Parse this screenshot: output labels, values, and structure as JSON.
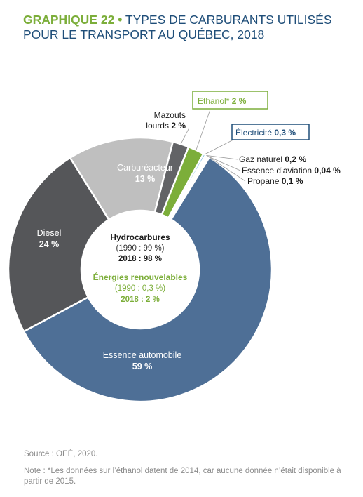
{
  "header": {
    "graph_number": "GRAPHIQUE 22",
    "bullet": "•",
    "title_line1": "TYPES DE CARBURANTS UTILISÉS",
    "title_line2": "POUR LE TRANSPORT AU QUÉBEC, 2018"
  },
  "center": {
    "hydro_title": "Hydrocarbures",
    "hydro_1990": "(1990 : 99 %)",
    "hydro_2018": "2018 : 98 %",
    "renew_title": "Énergies renouvelables",
    "renew_1990": "(1990 : 0,3 %)",
    "renew_2018": "2018 : 2 %"
  },
  "chart_data": {
    "type": "pie",
    "variant": "donut",
    "start_angle_deg_clockwise_from_top": 31,
    "series": [
      {
        "name": "Essence automobile",
        "value": 59,
        "label_value": "59 %",
        "color": "#4e6f96"
      },
      {
        "name": "Diesel",
        "value": 24,
        "label_value": "24 %",
        "color": "#555659"
      },
      {
        "name": "Carburéacteur",
        "value": 13,
        "label_value": "13 %",
        "color": "#bfbfbf"
      },
      {
        "name": "Mazouts lourds",
        "value": 2,
        "label_value": "2 %",
        "color": "#626366"
      },
      {
        "name": "Ethanol*",
        "value": 2,
        "label_value": "2 %",
        "color": "#7cae3a"
      },
      {
        "name": "Électricité",
        "value": 0.3,
        "label_value": "0,3 %",
        "color": "#8ec5e6"
      },
      {
        "name": "Gaz naturel",
        "value": 0.2,
        "label_value": "0,2 %",
        "color": "#4a4a4a"
      },
      {
        "name": "Essence d’aviation",
        "value": 0.04,
        "label_value": "0,04 %",
        "color": "#5a5a5a"
      },
      {
        "name": "Propane",
        "value": 0.1,
        "label_value": "0,1 %",
        "color": "#1f3b5c"
      }
    ],
    "colors": {
      "title_blue": "#1f4e79",
      "accent_green": "#7cae3a",
      "electricity_blue": "#1f4e79"
    }
  },
  "footer": {
    "source": "Source : OEÉ, 2020.",
    "note": "Note : *Les données sur l’éthanol datent de 2014, car aucune donnée n’était disponible à partir de 2015."
  }
}
